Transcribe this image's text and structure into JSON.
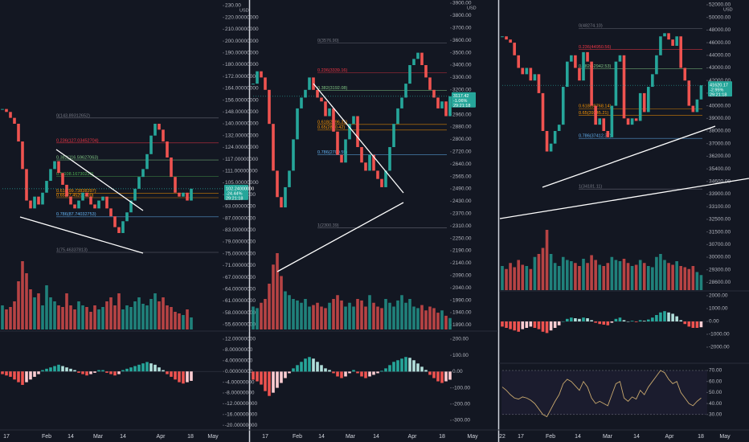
{
  "panels": [
    {
      "price_axis": {
        "currency": "USD",
        "ticks": [
          {
            "value": 230,
            "label": "230.00"
          },
          {
            "value": 220,
            "label": "220.00000000"
          },
          {
            "value": 210,
            "label": "210.00000000"
          },
          {
            "value": 200,
            "label": "200.00000000"
          },
          {
            "value": 190,
            "label": "190.00000000"
          },
          {
            "value": 180,
            "label": "180.00000000"
          },
          {
            "value": 172,
            "label": "172.00000000"
          },
          {
            "value": 164,
            "label": "164.00000000"
          },
          {
            "value": 156,
            "label": "156.00000000"
          },
          {
            "value": 148,
            "label": "148.00000000"
          },
          {
            "value": 140,
            "label": "140.00000000"
          },
          {
            "value": 132,
            "label": "132.00000000"
          },
          {
            "value": 124,
            "label": "124.00000000"
          },
          {
            "value": 117,
            "label": "117.00000000"
          },
          {
            "value": 111,
            "label": "111.00000000"
          },
          {
            "value": 105,
            "label": "105.00000000"
          },
          {
            "value": 99,
            "label": "99.00000000"
          },
          {
            "value": 93,
            "label": "93.00000000"
          },
          {
            "value": 87,
            "label": "87.00000000"
          },
          {
            "value": 83,
            "label": "83.00000000"
          },
          {
            "value": 79,
            "label": "79.00000000"
          },
          {
            "value": 75,
            "label": "75.00000000"
          },
          {
            "value": 71,
            "label": "71.00000000"
          },
          {
            "value": 67,
            "label": "67.00000000"
          },
          {
            "value": 64,
            "label": "64.00000000"
          },
          {
            "value": 61,
            "label": "61.00000000"
          },
          {
            "value": 58,
            "label": "58.00000000"
          },
          {
            "value": 55.6,
            "label": "55.60000000"
          }
        ]
      },
      "macd_axis": [
        {
          "value": 12,
          "label": "12.00000000"
        },
        {
          "value": 8,
          "label": "8.00000000"
        },
        {
          "value": 4,
          "label": "4.00000000"
        },
        {
          "value": 0,
          "label": "0.00000000"
        },
        {
          "value": -4,
          "label": "-4.00000000"
        },
        {
          "value": -8,
          "label": "-8.00000000"
        },
        {
          "value": -12,
          "label": "-12.00000000"
        },
        {
          "value": -16,
          "label": "-16.00000000"
        },
        {
          "value": -20,
          "label": "-20.00000000"
        }
      ],
      "dates": [
        "17",
        "Feb",
        "14",
        "Mar",
        "14",
        "Apr",
        "18",
        "May"
      ],
      "closes": [
        150,
        148,
        144,
        140,
        128,
        112,
        96,
        92,
        98,
        94,
        100,
        106,
        112,
        116,
        110,
        104,
        98,
        94,
        92,
        96,
        100,
        98,
        94,
        92,
        96,
        98,
        92,
        88,
        84,
        82,
        86,
        90,
        96,
        102,
        108,
        112,
        120,
        132,
        140,
        136,
        128,
        118,
        108,
        100,
        98,
        100,
        96,
        102
      ],
      "volumes": [
        30,
        25,
        28,
        35,
        60,
        85,
        70,
        50,
        40,
        45,
        30,
        55,
        40,
        35,
        30,
        28,
        45,
        30,
        25,
        35,
        30,
        28,
        22,
        30,
        25,
        28,
        35,
        40,
        30,
        45,
        25,
        30,
        28,
        35,
        40,
        32,
        30,
        38,
        45,
        35,
        40,
        30,
        28,
        22,
        20,
        18,
        25,
        15
      ],
      "macd_hist": [
        -1,
        -1.5,
        -2,
        -3,
        -4,
        -5,
        -4,
        -3,
        -2,
        -1,
        0.5,
        1,
        1.5,
        2,
        2.5,
        2,
        1.5,
        1,
        0.5,
        -0.5,
        -1,
        -1.5,
        -1,
        -0.5,
        0.5,
        0.5,
        -0.5,
        -1,
        -1.5,
        -1,
        0.5,
        1,
        1.5,
        2,
        2.5,
        3,
        3.5,
        3,
        2.5,
        1.5,
        0.5,
        -1,
        -2,
        -3,
        -4,
        -4.5,
        -4,
        -3.5
      ],
      "fib_levels": [
        {
          "label": "0(143.89312652)",
          "price": 143.89312652,
          "color": "#787b86"
        },
        {
          "label": "0.236(127.03452704)",
          "price": 127.03452704,
          "color": "#f23645"
        },
        {
          "label": "0.382(116.59627063)",
          "price": 116.59627063,
          "color": "#81c784"
        },
        {
          "label": "0.5(108.16730230)",
          "price": 108.1673023,
          "color": "#4caf50"
        },
        {
          "label": "0.618(99.73838397)",
          "price": 99.73838397,
          "color": "#ff9800"
        },
        {
          "label": "0.65(97.45201400)",
          "price": 97.452014,
          "color": "#ff9800"
        },
        {
          "label": "0.786(87.74032753)",
          "price": 87.74032753,
          "color": "#64b5f6"
        },
        {
          "label": "1(75.46337813)",
          "price": 75.46337813,
          "color": "#787b86"
        }
      ],
      "price_tag": [
        "102.24000000",
        "-24.44%",
        "29:21:18"
      ]
    },
    {
      "price_axis": {
        "currency": "USD",
        "ticks": [
          {
            "value": 3900,
            "label": "3900.00"
          },
          {
            "value": 3800,
            "label": "3800.00"
          },
          {
            "value": 3700,
            "label": "3700.00"
          },
          {
            "value": 3600,
            "label": "3600.00"
          },
          {
            "value": 3500,
            "label": "3500.00"
          },
          {
            "value": 3400,
            "label": "3400.00"
          },
          {
            "value": 3300,
            "label": "3300.00"
          },
          {
            "value": 3200,
            "label": "3200.00"
          },
          {
            "value": 3040,
            "label": "3040.00"
          },
          {
            "value": 2960,
            "label": "2960.00"
          },
          {
            "value": 2880,
            "label": "2880.00"
          },
          {
            "value": 2800,
            "label": "2800.00"
          },
          {
            "value": 2720,
            "label": "2720.00"
          },
          {
            "value": 2640,
            "label": "2640.00"
          },
          {
            "value": 2565,
            "label": "2565.00"
          },
          {
            "value": 2490,
            "label": "2490.00"
          },
          {
            "value": 2430,
            "label": "2430.00"
          },
          {
            "value": 2370,
            "label": "2370.00"
          },
          {
            "value": 2310,
            "label": "2310.00"
          },
          {
            "value": 2250,
            "label": "2250.00"
          },
          {
            "value": 2190,
            "label": "2190.00"
          },
          {
            "value": 2140,
            "label": "2140.00"
          },
          {
            "value": 2090,
            "label": "2090.00"
          },
          {
            "value": 2040,
            "label": "2040.00"
          },
          {
            "value": 1990,
            "label": "1990.00"
          },
          {
            "value": 1940,
            "label": "1940.00"
          },
          {
            "value": 1890,
            "label": "1890.00"
          }
        ]
      },
      "macd_axis": [
        {
          "value": 200,
          "label": "200.00"
        },
        {
          "value": 100,
          "label": "100.00"
        },
        {
          "value": 0,
          "label": "0.00"
        },
        {
          "value": -100,
          "label": "-100.00"
        },
        {
          "value": -200,
          "label": "-200.00"
        },
        {
          "value": -300,
          "label": "-300.00"
        }
      ],
      "dates": [
        "17",
        "Feb",
        "14",
        "Mar",
        "14",
        "Apr",
        "18",
        "May"
      ],
      "closes": [
        3250,
        3350,
        3300,
        3200,
        2900,
        2600,
        2450,
        2400,
        2500,
        2600,
        2800,
        3000,
        3100,
        3200,
        3300,
        3200,
        3100,
        3050,
        2950,
        3000,
        2850,
        2700,
        2650,
        2800,
        2900,
        2950,
        2750,
        2650,
        2600,
        2700,
        2600,
        2550,
        2500,
        2600,
        2750,
        2900,
        3000,
        3100,
        3250,
        3400,
        3450,
        3500,
        3400,
        3300,
        3200,
        3100,
        3000,
        3050,
        2950,
        3117
      ],
      "volumes": [
        30,
        28,
        35,
        40,
        60,
        85,
        100,
        70,
        50,
        45,
        40,
        38,
        35,
        40,
        30,
        32,
        35,
        30,
        28,
        35,
        40,
        45,
        38,
        30,
        35,
        30,
        40,
        38,
        30,
        45,
        35,
        30,
        28,
        40,
        35,
        30,
        38,
        45,
        35,
        40,
        30,
        28,
        32,
        25,
        30,
        28,
        22,
        25,
        18,
        15
      ],
      "macd_hist": [
        -50,
        -60,
        -80,
        -120,
        -150,
        -130,
        -100,
        -70,
        -40,
        -10,
        20,
        40,
        60,
        80,
        90,
        80,
        60,
        40,
        20,
        10,
        -10,
        -30,
        -40,
        -30,
        -10,
        10,
        -10,
        -30,
        -40,
        -30,
        -20,
        -10,
        5,
        20,
        40,
        60,
        70,
        80,
        90,
        85,
        70,
        50,
        30,
        10,
        -20,
        -40,
        -60,
        -70,
        -60,
        -50
      ],
      "fib_levels": [
        {
          "label": "0(3576.90)",
          "price": 3576.9,
          "color": "#787b86"
        },
        {
          "label": "0.236(3339.16)",
          "price": 3339.16,
          "color": "#f23645"
        },
        {
          "label": "0.382(3192.08)",
          "price": 3192.08,
          "color": "#81c784"
        },
        {
          "label": "0.618(2896.31)",
          "price": 2896.31,
          "color": "#ff9800"
        },
        {
          "label": "0.65(2860.42)",
          "price": 2860.42,
          "color": "#ff9800"
        },
        {
          "label": "0.786(2700.55)",
          "price": 2700.55,
          "color": "#64b5f6"
        },
        {
          "label": "1(2300.39)",
          "price": 2300.39,
          "color": "#787b86"
        }
      ],
      "price_tag": [
        "3117.42",
        "-1.06%",
        "29:21:18"
      ]
    },
    {
      "price_axis": {
        "currency": "USD",
        "ticks": [
          {
            "value": 52000,
            "label": "52000.00"
          },
          {
            "value": 50000,
            "label": "50000.00"
          },
          {
            "value": 48000,
            "label": "48000.00"
          },
          {
            "value": 46000,
            "label": "46000.00"
          },
          {
            "value": 44000,
            "label": "44000.00"
          },
          {
            "value": 43000,
            "label": "43000.00"
          },
          {
            "value": 42000,
            "label": "42000.00"
          },
          {
            "value": 41000,
            "label": "41000.00"
          },
          {
            "value": 40000,
            "label": "40000.00"
          },
          {
            "value": 39000,
            "label": "39000.00"
          },
          {
            "value": 38000,
            "label": "38000.00"
          },
          {
            "value": 37000,
            "label": "37000.00"
          },
          {
            "value": 36200,
            "label": "36200.00"
          },
          {
            "value": 35400,
            "label": "35400.00"
          },
          {
            "value": 34600,
            "label": "34600.00"
          },
          {
            "value": 33900,
            "label": "33900.00"
          },
          {
            "value": 33100,
            "label": "33100.00"
          },
          {
            "value": 32500,
            "label": "32500.00"
          },
          {
            "value": 31500,
            "label": "31500.00"
          },
          {
            "value": 30700,
            "label": "30700.00"
          },
          {
            "value": 30000,
            "label": "30000.00"
          },
          {
            "value": 29300,
            "label": "29300.00"
          },
          {
            "value": 28600,
            "label": "28600.00"
          }
        ]
      },
      "macd_axis": [
        {
          "value": 2000,
          "label": "2000.00"
        },
        {
          "value": 1000,
          "label": "1000.00"
        },
        {
          "value": 0,
          "label": "0.00"
        },
        {
          "value": -1000,
          "label": "-1000.00"
        },
        {
          "value": -2000,
          "label": "-2000.00"
        }
      ],
      "rsi_axis": [
        {
          "value": 70,
          "label": "70.00"
        },
        {
          "value": 60,
          "label": "60.00"
        },
        {
          "value": 50,
          "label": "50.00"
        },
        {
          "value": 40,
          "label": "40.00"
        },
        {
          "value": 30,
          "label": "30.00"
        }
      ],
      "dates": [
        "22",
        "17",
        "Feb",
        "14",
        "Mar",
        "14",
        "Apr",
        "18",
        "May"
      ],
      "closes": [
        47000,
        46500,
        46000,
        44000,
        43000,
        42500,
        43000,
        42000,
        42500,
        41000,
        38000,
        36500,
        37000,
        38000,
        38500,
        41500,
        43500,
        44000,
        43000,
        42000,
        44500,
        43500,
        40000,
        38500,
        39000,
        38000,
        37500,
        40000,
        43500,
        44000,
        39000,
        38500,
        39000,
        38800,
        41000,
        39500,
        41500,
        42500,
        44000,
        47000,
        47500,
        46500,
        45500,
        47000,
        43000,
        42000,
        40000,
        39500,
        40500,
        41620
      ],
      "volumes": [
        40,
        35,
        45,
        38,
        50,
        42,
        40,
        35,
        55,
        60,
        70,
        100,
        60,
        45,
        40,
        55,
        50,
        48,
        45,
        40,
        52,
        45,
        58,
        50,
        42,
        40,
        45,
        55,
        50,
        48,
        52,
        45,
        40,
        42,
        50,
        45,
        40,
        38,
        55,
        60,
        50,
        45,
        42,
        48,
        40,
        38,
        35,
        40,
        30,
        25
      ],
      "macd_hist": [
        -400,
        -500,
        -600,
        -700,
        -800,
        -600,
        -500,
        -400,
        -500,
        -600,
        -800,
        -900,
        -700,
        -500,
        -300,
        0,
        200,
        300,
        250,
        200,
        300,
        250,
        100,
        -100,
        -200,
        -250,
        -300,
        -100,
        200,
        300,
        100,
        0,
        50,
        -50,
        100,
        50,
        150,
        300,
        500,
        700,
        800,
        700,
        600,
        400,
        100,
        -200,
        -400,
        -500,
        -500,
        -450
      ],
      "rsi": [
        55,
        52,
        48,
        45,
        44,
        46,
        45,
        43,
        40,
        35,
        30,
        28,
        35,
        42,
        48,
        58,
        62,
        60,
        56,
        52,
        60,
        55,
        45,
        40,
        42,
        40,
        38,
        48,
        58,
        60,
        45,
        42,
        46,
        44,
        52,
        48,
        55,
        60,
        65,
        70,
        68,
        62,
        58,
        60,
        50,
        45,
        40,
        38,
        42,
        45
      ],
      "fib_levels": [
        {
          "label": "0(48274.10)",
          "price": 48274.1,
          "color": "#787b86"
        },
        {
          "label": "0.236(44950.56)",
          "price": 44950.56,
          "color": "#f23645"
        },
        {
          "label": "0.382(42942.53)",
          "price": 42942.53,
          "color": "#81c784"
        },
        {
          "label": "0.618(39768.14)",
          "price": 39768.14,
          "color": "#ff9800"
        },
        {
          "label": "0.65(39245.21)",
          "price": 39245.21,
          "color": "#ff9800"
        },
        {
          "label": "0.786(37412.37)",
          "price": 37412.37,
          "color": "#64b5f6"
        },
        {
          "label": "1(34181.11)",
          "price": 34181.11,
          "color": "#787b86"
        }
      ],
      "price_tag": [
        "41620.17",
        "-2.95%",
        "29:21:18"
      ]
    }
  ]
}
